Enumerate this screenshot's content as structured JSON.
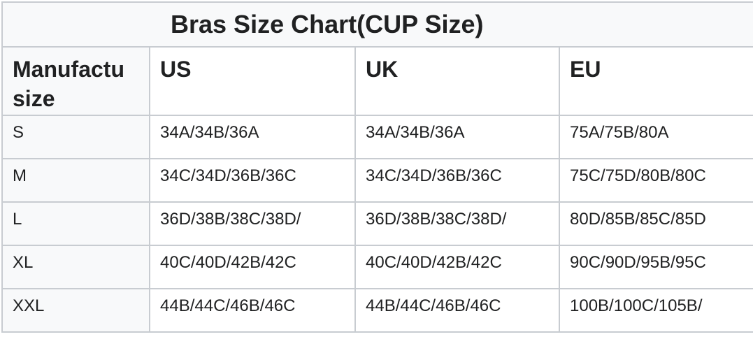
{
  "table": {
    "title": "Bras Size Chart(CUP Size)",
    "headers": [
      "Manufactu size",
      "US",
      "UK",
      "EU"
    ],
    "rows": [
      [
        "S",
        "34A/34B/36A",
        "34A/34B/36A",
        "75A/75B/80A"
      ],
      [
        "M",
        "34C/34D/36B/36C",
        "34C/34D/36B/36C",
        "75C/75D/80B/80C"
      ],
      [
        "L",
        "36D/38B/38C/38D/",
        "36D/38B/38C/38D/",
        "80D/85B/85C/85D"
      ],
      [
        "XL",
        "40C/40D/42B/42C",
        "40C/40D/42B/42C",
        "90C/90D/95B/95C"
      ],
      [
        "XXL",
        "44B/44C/46B/46C",
        "44B/44C/46B/46C",
        "100B/100C/105B/"
      ]
    ]
  }
}
